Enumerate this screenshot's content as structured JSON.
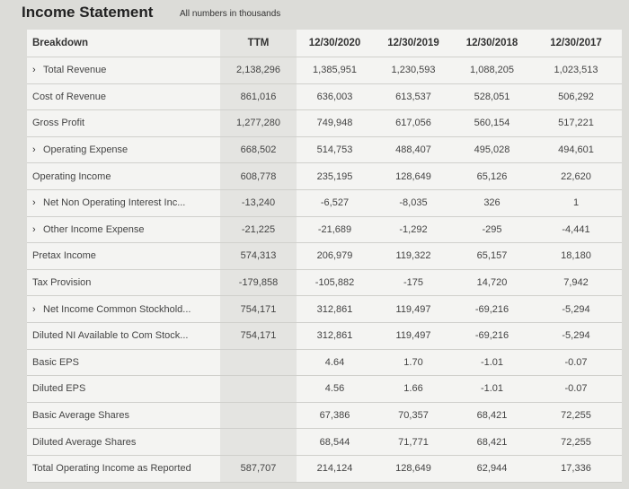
{
  "header": {
    "title": "Income Statement",
    "note": "All numbers in thousands"
  },
  "table": {
    "columns": [
      "Breakdown",
      "TTM",
      "12/30/2020",
      "12/30/2019",
      "12/30/2018",
      "12/30/2017"
    ],
    "rows": [
      {
        "label": "Total Revenue",
        "expandable": true,
        "values": [
          "2,138,296",
          "1,385,951",
          "1,230,593",
          "1,088,205",
          "1,023,513"
        ]
      },
      {
        "label": "Cost of Revenue",
        "expandable": false,
        "values": [
          "861,016",
          "636,003",
          "613,537",
          "528,051",
          "506,292"
        ]
      },
      {
        "label": "Gross Profit",
        "expandable": false,
        "values": [
          "1,277,280",
          "749,948",
          "617,056",
          "560,154",
          "517,221"
        ]
      },
      {
        "label": "Operating Expense",
        "expandable": true,
        "values": [
          "668,502",
          "514,753",
          "488,407",
          "495,028",
          "494,601"
        ]
      },
      {
        "label": "Operating Income",
        "expandable": false,
        "values": [
          "608,778",
          "235,195",
          "128,649",
          "65,126",
          "22,620"
        ]
      },
      {
        "label": "Net Non Operating Interest Inc...",
        "expandable": true,
        "values": [
          "-13,240",
          "-6,527",
          "-8,035",
          "326",
          "1"
        ]
      },
      {
        "label": "Other Income Expense",
        "expandable": true,
        "values": [
          "-21,225",
          "-21,689",
          "-1,292",
          "-295",
          "-4,441"
        ]
      },
      {
        "label": "Pretax Income",
        "expandable": false,
        "values": [
          "574,313",
          "206,979",
          "119,322",
          "65,157",
          "18,180"
        ]
      },
      {
        "label": "Tax Provision",
        "expandable": false,
        "values": [
          "-179,858",
          "-105,882",
          "-175",
          "14,720",
          "7,942"
        ]
      },
      {
        "label": "Net Income Common Stockhold...",
        "expandable": true,
        "values": [
          "754,171",
          "312,861",
          "119,497",
          "-69,216",
          "-5,294"
        ]
      },
      {
        "label": "Diluted NI Available to Com Stock...",
        "expandable": false,
        "values": [
          "754,171",
          "312,861",
          "119,497",
          "-69,216",
          "-5,294"
        ]
      },
      {
        "label": "Basic EPS",
        "expandable": false,
        "values": [
          null,
          "4.64",
          "1.70",
          "-1.01",
          "-0.07"
        ]
      },
      {
        "label": "Diluted EPS",
        "expandable": false,
        "values": [
          null,
          "4.56",
          "1.66",
          "-1.01",
          "-0.07"
        ]
      },
      {
        "label": "Basic Average Shares",
        "expandable": false,
        "values": [
          null,
          "67,386",
          "70,357",
          "68,421",
          "72,255"
        ]
      },
      {
        "label": "Diluted Average Shares",
        "expandable": false,
        "values": [
          null,
          "68,544",
          "71,771",
          "68,421",
          "72,255"
        ]
      },
      {
        "label": "Total Operating Income as Reported",
        "expandable": false,
        "values": [
          "587,707",
          "214,124",
          "128,649",
          "62,944",
          "17,336"
        ]
      }
    ]
  }
}
